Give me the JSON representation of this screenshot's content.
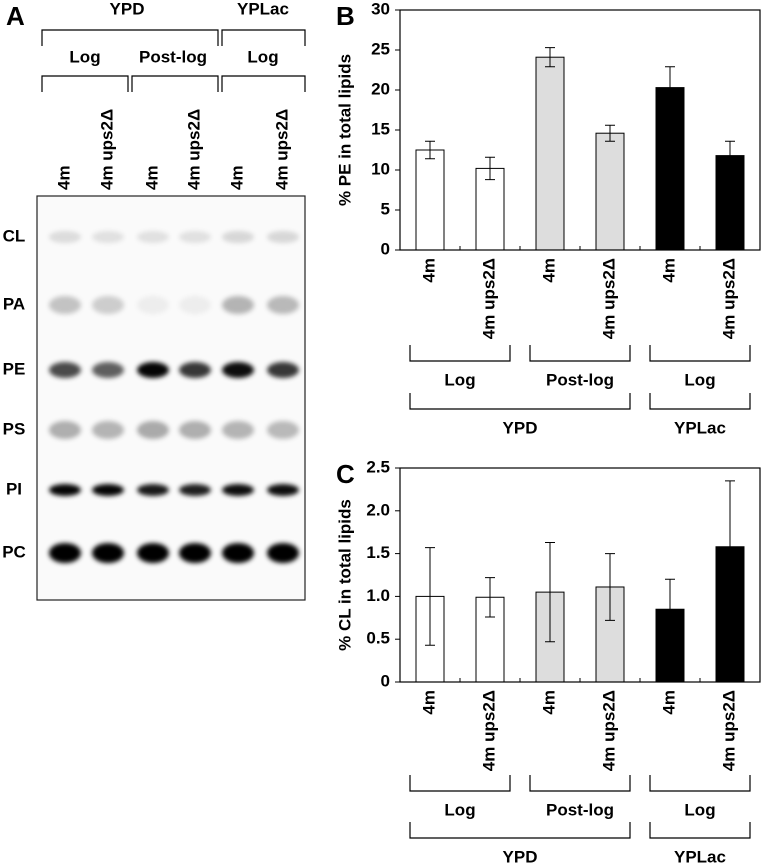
{
  "panel_a": {
    "label": "A",
    "media": [
      "YPD",
      "YPLac"
    ],
    "phases": [
      "Log",
      "Post-log",
      "Log"
    ],
    "lanes": [
      "4m",
      "4m ups2Δ",
      "4m",
      "4m ups2Δ",
      "4m",
      "4m ups2Δ"
    ],
    "lipids": [
      "CL",
      "PA",
      "PE",
      "PS",
      "PI",
      "PC"
    ]
  },
  "chart_data": [
    {
      "type": "bar",
      "label": "B",
      "ylabel": "% PE in total lipids",
      "categories": [
        "4m",
        "4m ups2Δ",
        "4m",
        "4m ups2Δ",
        "4m",
        "4m ups2Δ"
      ],
      "values": [
        12.5,
        10.2,
        24.1,
        14.6,
        20.3,
        11.8
      ],
      "errors": [
        1.1,
        1.4,
        1.2,
        1.0,
        2.6,
        1.8
      ],
      "colors": [
        "#ffffff",
        "#ffffff",
        "#dddddd",
        "#dddddd",
        "#000000",
        "#000000"
      ],
      "ylim": [
        0,
        30
      ],
      "yticks": [
        0,
        5,
        10,
        15,
        20,
        25,
        30
      ],
      "group_labels": [
        "Log",
        "Post-log",
        "Log"
      ],
      "supergroup_labels": [
        "YPD",
        "YPLac"
      ]
    },
    {
      "type": "bar",
      "label": "C",
      "ylabel": "% CL in total lipids",
      "categories": [
        "4m",
        "4m ups2Δ",
        "4m",
        "4m ups2Δ",
        "4m",
        "4m ups2Δ"
      ],
      "values": [
        1.0,
        0.99,
        1.05,
        1.11,
        0.85,
        1.58
      ],
      "errors": [
        0.57,
        0.23,
        0.58,
        0.39,
        0.35,
        0.77
      ],
      "colors": [
        "#ffffff",
        "#ffffff",
        "#dddddd",
        "#dddddd",
        "#000000",
        "#000000"
      ],
      "ylim": [
        0,
        2.5
      ],
      "yticks": [
        0,
        0.5,
        {
          "value": 1,
          "label": "1.0"
        },
        1.5,
        {
          "value": 2,
          "label": "2.0"
        },
        2.5
      ],
      "group_labels": [
        "Log",
        "Post-log",
        "Log"
      ],
      "supergroup_labels": [
        "YPD",
        "YPLac"
      ]
    }
  ]
}
